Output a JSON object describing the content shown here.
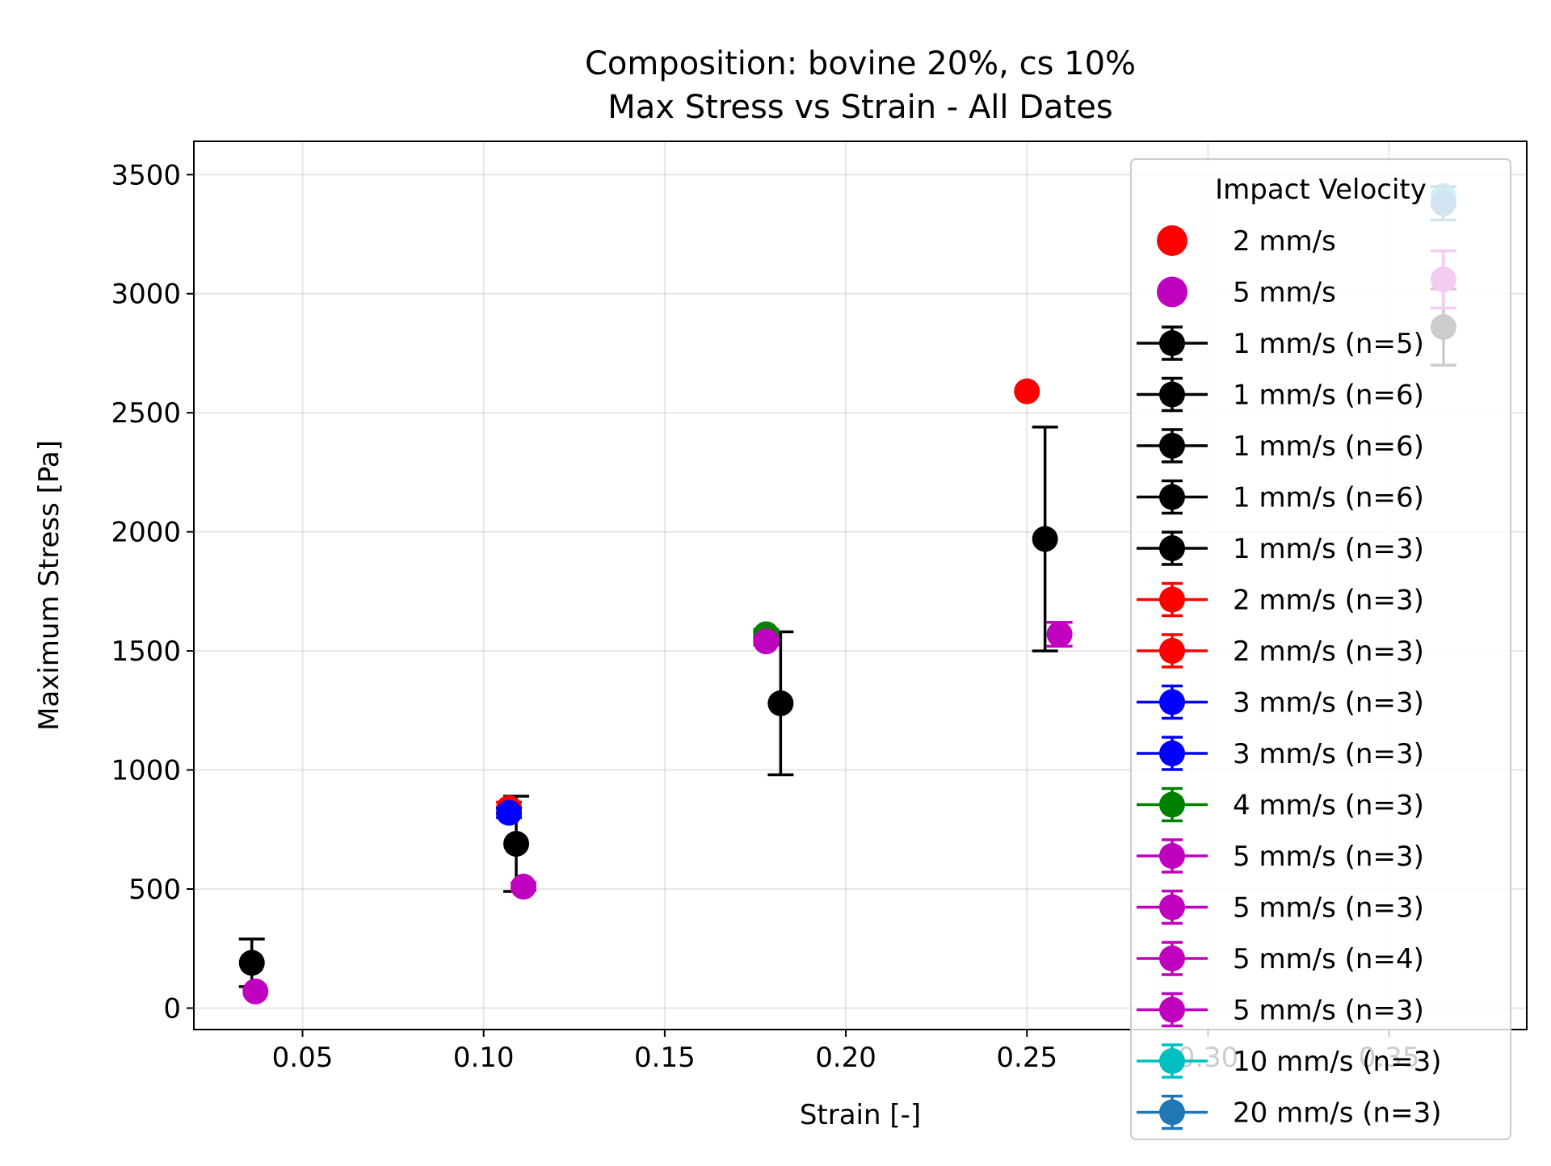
{
  "chart_data": {
    "type": "scatter",
    "title": "Composition: bovine 20%, cs 10%",
    "subtitle": "Max Stress vs Strain - All Dates",
    "xlabel": "Strain [-]",
    "ylabel": "Maximum Stress [Pa]",
    "xlim": [
      0.02,
      0.388
    ],
    "ylim": [
      -90,
      3640
    ],
    "x_ticks": [
      "0.05",
      "0.10",
      "0.15",
      "0.20",
      "0.25",
      "0.30",
      "0.35"
    ],
    "x_tick_values": [
      0.05,
      0.1,
      0.15,
      0.2,
      0.25,
      0.3,
      0.35
    ],
    "y_ticks": [
      "0",
      "500",
      "1000",
      "1500",
      "2000",
      "2500",
      "3000",
      "3500"
    ],
    "y_tick_values": [
      0,
      500,
      1000,
      1500,
      2000,
      2500,
      3000,
      3500
    ],
    "grid": true,
    "legend_title": "Impact Velocity",
    "legend_placement": "top-right",
    "series": [
      {
        "name": "2 mm/s",
        "color": "#ff0000",
        "marker": "scatter",
        "points": [
          {
            "x": 0.25,
            "y": 2590
          }
        ]
      },
      {
        "name": "5 mm/s",
        "color": "#bf00bf",
        "marker": "scatter",
        "points": [
          {
            "x": 0.037,
            "y": 70
          }
        ]
      },
      {
        "name": "1 mm/s (n=5)",
        "color": "#000000",
        "marker": "errorbar",
        "points": [
          {
            "x": 0.036,
            "y": 190,
            "err": 100
          }
        ]
      },
      {
        "name": "1 mm/s (n=6)",
        "color": "#000000",
        "marker": "errorbar",
        "points": [
          {
            "x": 0.109,
            "y": 690,
            "err": 200
          }
        ]
      },
      {
        "name": "1 mm/s (n=6)",
        "color": "#000000",
        "marker": "errorbar",
        "points": [
          {
            "x": 0.182,
            "y": 1280,
            "err": 300
          }
        ]
      },
      {
        "name": "1 mm/s (n=6)",
        "color": "#000000",
        "marker": "errorbar",
        "points": [
          {
            "x": 0.255,
            "y": 1970,
            "err": 470
          }
        ]
      },
      {
        "name": "1 mm/s (n=3)",
        "color": "#000000",
        "marker": "errorbar",
        "points": [
          {
            "x": 0.365,
            "y": 2860,
            "err": 160
          }
        ]
      },
      {
        "name": "2 mm/s (n=3)",
        "color": "#ff0000",
        "marker": "errorbar",
        "points": [
          {
            "x": 0.107,
            "y": 840,
            "err": 25
          }
        ]
      },
      {
        "name": "2 mm/s (n=3)",
        "color": "#ff0000",
        "marker": "errorbar",
        "points": [
          {
            "x": 0.178,
            "y": 1560,
            "err": 20
          }
        ]
      },
      {
        "name": "3 mm/s (n=3)",
        "color": "#0000ff",
        "marker": "errorbar",
        "points": [
          {
            "x": 0.107,
            "y": 820,
            "err": 20
          }
        ]
      },
      {
        "name": "3 mm/s (n=3)",
        "color": "#0000ff",
        "marker": "errorbar",
        "points": [
          {
            "x": 0.178,
            "y": 1560,
            "err": 20
          }
        ]
      },
      {
        "name": "4 mm/s (n=3)",
        "color": "#008000",
        "marker": "errorbar",
        "points": [
          {
            "x": 0.178,
            "y": 1570,
            "err": 20
          }
        ]
      },
      {
        "name": "5 mm/s (n=3)",
        "color": "#bf00bf",
        "marker": "errorbar",
        "points": [
          {
            "x": 0.111,
            "y": 510,
            "err": 15
          }
        ]
      },
      {
        "name": "5 mm/s (n=3)",
        "color": "#bf00bf",
        "marker": "errorbar",
        "points": [
          {
            "x": 0.178,
            "y": 1540,
            "err": 15
          }
        ]
      },
      {
        "name": "5 mm/s (n=4)",
        "color": "#bf00bf",
        "marker": "errorbar",
        "points": [
          {
            "x": 0.259,
            "y": 1570,
            "err": 50
          }
        ]
      },
      {
        "name": "5 mm/s (n=3)",
        "color": "#bf00bf",
        "marker": "errorbar",
        "points": [
          {
            "x": 0.365,
            "y": 3060,
            "err": 120
          }
        ]
      },
      {
        "name": "10 mm/s (n=3)",
        "color": "#00bfbf",
        "marker": "errorbar",
        "points": [
          {
            "x": 0.365,
            "y": 3410,
            "err": 40
          }
        ]
      },
      {
        "name": "20 mm/s (n=3)",
        "color": "#1f77b4",
        "marker": "errorbar",
        "points": [
          {
            "x": 0.365,
            "y": 3380,
            "err": 70
          }
        ]
      }
    ]
  }
}
